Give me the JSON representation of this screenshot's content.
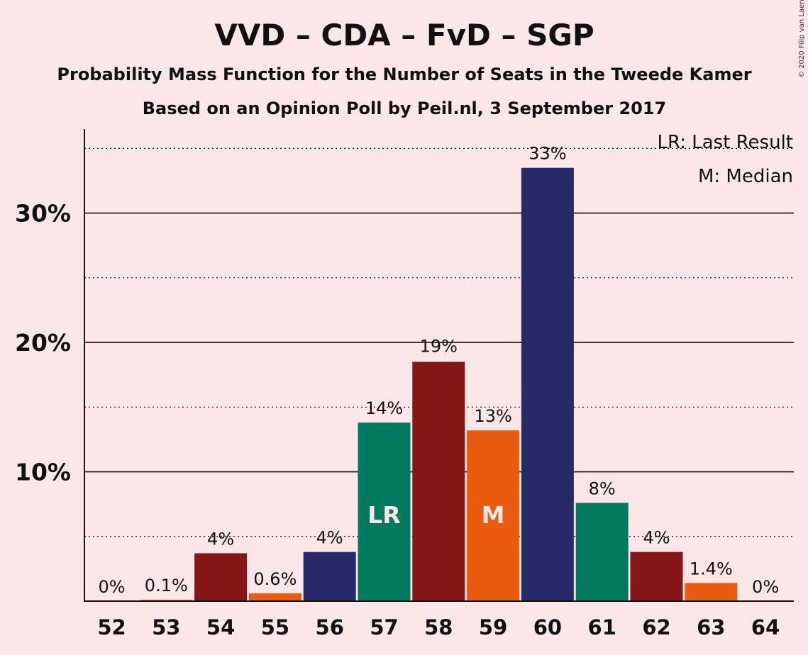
{
  "chart_data": {
    "type": "bar",
    "title": "VVD – CDA – FvD – SGP",
    "subtitle1": "Probability Mass Function for the Number of Seats in the Tweede Kamer",
    "subtitle2": "Based on an Opinion Poll by Peil.nl, 3 September 2017",
    "copyright": "© 2020 Filip van Laenen",
    "categories": [
      "52",
      "53",
      "54",
      "55",
      "56",
      "57",
      "58",
      "59",
      "60",
      "61",
      "62",
      "63",
      "64"
    ],
    "values": [
      0,
      0.1,
      3.7,
      0.6,
      3.8,
      13.8,
      18.5,
      13.2,
      33.5,
      7.6,
      3.8,
      1.4,
      0
    ],
    "labels": [
      "0%",
      "0.1%",
      "4%",
      "0.6%",
      "4%",
      "14%",
      "",
      "13%",
      "33%",
      "8%",
      "4%",
      "1.4%",
      "0%"
    ],
    "colors": [
      "#e95c0f",
      "#e95c0f",
      "#841617",
      "#e95c0f",
      "#262a66",
      "#007a5e",
      "#841617",
      "#e95c0f",
      "#262a66",
      "#007a5e",
      "#841617",
      "#e95c0f",
      "#e95c0f"
    ],
    "top_label": {
      "index": 6,
      "text": "19%"
    },
    "markers": [
      {
        "index": 5,
        "text": "LR"
      },
      {
        "index": 7,
        "text": "M"
      }
    ],
    "yticks": [
      10,
      20,
      30
    ],
    "ytick_labels": [
      "10%",
      "20%",
      "30%"
    ],
    "ylim": [
      0,
      36.5
    ],
    "grid": true,
    "legend": [
      "LR: Last Result",
      "M: Median"
    ]
  }
}
